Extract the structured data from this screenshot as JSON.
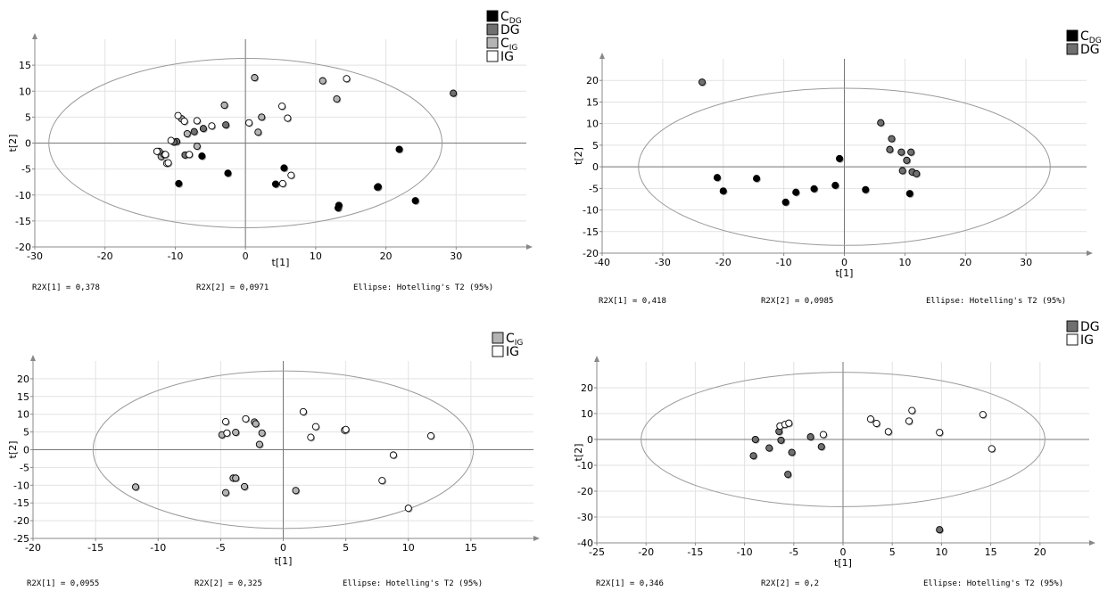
{
  "colors": {
    "C_DG": "#000000",
    "DG": "#707070",
    "C_IG": "#b4b4b4",
    "IG": "#ffffff",
    "grid": "#e2e2e2",
    "ellipse": "#9a9a9a"
  },
  "chart_data": [
    {
      "type": "scatter",
      "xlabel": "t[1]",
      "ylabel": "t[2]",
      "xlim": [
        -30,
        40
      ],
      "ylim": [
        -20,
        20
      ],
      "xticks": [
        "-30",
        "-20",
        "-10",
        "0",
        "10",
        "20",
        "30"
      ],
      "yticks": [
        "-20",
        "-15",
        "-10",
        "-5",
        "0",
        "5",
        "10",
        "15"
      ],
      "ellipse": {
        "label": "Ellipse: Hotelling's T2 (95%)",
        "rx": 28,
        "ry": 16.3
      },
      "legend": [
        {
          "group": "C_DG",
          "base": "C",
          "sub": "DG"
        },
        {
          "group": "DG",
          "base": "DG",
          "sub": ""
        },
        {
          "group": "C_IG",
          "base": "C",
          "sub": "IG"
        },
        {
          "group": "IG",
          "base": "IG",
          "sub": ""
        }
      ],
      "footer": {
        "r2x1": "R2X[1] = 0,378",
        "r2x2": "R2X[2] = 0,0971"
      },
      "series": [
        {
          "group": "C_DG",
          "points": [
            [
              -9.5,
              -7.8
            ],
            [
              -6.2,
              -2.5
            ],
            [
              -2.5,
              -5.8
            ],
            [
              4.3,
              -7.9
            ],
            [
              5.5,
              -4.8
            ],
            [
              13.2,
              -12.5
            ],
            [
              13.3,
              -12
            ],
            [
              18.8,
              -8.5
            ],
            [
              18.9,
              -8.4
            ],
            [
              21.9,
              -1.2
            ],
            [
              24.2,
              -11.1
            ]
          ]
        },
        {
          "group": "DG",
          "points": [
            [
              -7.3,
              2.2
            ],
            [
              -6,
              2.8
            ],
            [
              -8.6,
              -2.3
            ],
            [
              -9.8,
              0.3
            ],
            [
              -2.8,
              3.5
            ],
            [
              -10.2,
              0.2
            ],
            [
              29.6,
              9.6
            ]
          ]
        },
        {
          "group": "C_IG",
          "points": [
            [
              -9.1,
              4.7
            ],
            [
              -12,
              -2.6
            ],
            [
              -11.6,
              -2.2
            ],
            [
              -6.9,
              -0.6
            ],
            [
              -3,
              7.3
            ],
            [
              1.3,
              12.6
            ],
            [
              2.3,
              5
            ],
            [
              1.8,
              2.1
            ],
            [
              11,
              12
            ],
            [
              13,
              8.5
            ],
            [
              -8.3,
              1.8
            ],
            [
              -12.3,
              -1.6
            ]
          ]
        },
        {
          "group": "IG",
          "points": [
            [
              -9.6,
              5.3
            ],
            [
              -8.7,
              4.2
            ],
            [
              -6.9,
              4.3
            ],
            [
              -4.8,
              3.3
            ],
            [
              -10.6,
              0.5
            ],
            [
              -11.2,
              -3.9
            ],
            [
              -11,
              -3.8
            ],
            [
              -12.6,
              -1.6
            ],
            [
              -11.4,
              -2.2
            ],
            [
              0.5,
              3.9
            ],
            [
              5.2,
              7.1
            ],
            [
              6,
              4.8
            ],
            [
              5.3,
              -7.8
            ],
            [
              6.5,
              -6.2
            ],
            [
              14.4,
              12.4
            ],
            [
              -8,
              -2.2
            ]
          ]
        }
      ]
    },
    {
      "type": "scatter",
      "xlabel": "t[1]",
      "ylabel": "t[2]",
      "xlim": [
        -40,
        40
      ],
      "ylim": [
        -20,
        25
      ],
      "xticks": [
        "-40",
        "-30",
        "-20",
        "-10",
        "0",
        "10",
        "20",
        "30"
      ],
      "yticks": [
        "-20",
        "-15",
        "-10",
        "-5",
        "0",
        "5",
        "10",
        "15",
        "20"
      ],
      "ellipse": {
        "label": "Ellipse: Hotelling's T2 (95%)",
        "rx": 34,
        "ry": 18.2
      },
      "legend": [
        {
          "group": "C_DG",
          "base": "C",
          "sub": "DG"
        },
        {
          "group": "DG",
          "base": "DG",
          "sub": ""
        }
      ],
      "footer": {
        "r2x1": "R2X[1] = 0,418",
        "r2x2": "R2X[2] = 0,0985"
      },
      "series": [
        {
          "group": "C_DG",
          "points": [
            [
              -21,
              -2.5
            ],
            [
              -20,
              -5.6
            ],
            [
              -14.5,
              -2.7
            ],
            [
              -9.7,
              -8.2
            ],
            [
              -8,
              -5.9
            ],
            [
              -5,
              -5.1
            ],
            [
              -1.5,
              -4.3
            ],
            [
              -0.8,
              1.9
            ],
            [
              3.5,
              -5.3
            ],
            [
              10.8,
              -6.2
            ]
          ]
        },
        {
          "group": "DG",
          "points": [
            [
              -23.5,
              19.6
            ],
            [
              6,
              10.2
            ],
            [
              7.8,
              6.5
            ],
            [
              7.5,
              4
            ],
            [
              9.4,
              3.4
            ],
            [
              11,
              3.4
            ],
            [
              10.3,
              1.5
            ],
            [
              9.6,
              -0.9
            ],
            [
              11.2,
              -1.2
            ],
            [
              11.9,
              -1.6
            ]
          ]
        }
      ]
    },
    {
      "type": "scatter",
      "xlabel": "t[1]",
      "ylabel": "t[2]",
      "xlim": [
        -20,
        20
      ],
      "ylim": [
        -25,
        25
      ],
      "xticks": [
        "-20",
        "-15",
        "-10",
        "-5",
        "0",
        "5",
        "10",
        "15"
      ],
      "yticks": [
        "-25",
        "-20",
        "-15",
        "-10",
        "-5",
        "0",
        "5",
        "10",
        "15",
        "20"
      ],
      "ellipse": {
        "label": "Ellipse: Hotelling's T2 (95%)",
        "rx": 15.2,
        "ry": 22.2
      },
      "legend": [
        {
          "group": "C_IG",
          "base": "C",
          "sub": "IG"
        },
        {
          "group": "IG",
          "base": "IG",
          "sub": ""
        }
      ],
      "footer": {
        "r2x1": "R2X[1] = 0,0955",
        "r2x2": "R2X[2] = 0,325"
      },
      "series": [
        {
          "group": "C_IG",
          "points": [
            [
              -11.8,
              -10.5
            ],
            [
              -4.9,
              4.2
            ],
            [
              -3.8,
              4.9
            ],
            [
              -2.3,
              7.8
            ],
            [
              -2.2,
              7.3
            ],
            [
              -1.7,
              4.7
            ],
            [
              -1.9,
              1.5
            ],
            [
              -4.6,
              -12.1
            ],
            [
              -3.1,
              -10.4
            ],
            [
              -4,
              -8
            ],
            [
              -3.8,
              -8
            ],
            [
              1,
              -11.5
            ]
          ]
        },
        {
          "group": "IG",
          "points": [
            [
              -4.6,
              7.9
            ],
            [
              -4.5,
              4.7
            ],
            [
              -3,
              8.7
            ],
            [
              1.6,
              10.7
            ],
            [
              2.2,
              3.5
            ],
            [
              2.6,
              6.5
            ],
            [
              4.9,
              5.5
            ],
            [
              5,
              5.7
            ],
            [
              11.8,
              3.9
            ],
            [
              8.8,
              -1.5
            ],
            [
              7.9,
              -8.7
            ],
            [
              10,
              -16.5
            ]
          ]
        }
      ]
    },
    {
      "type": "scatter",
      "xlabel": "t[1]",
      "ylabel": "t[2]",
      "xlim": [
        -25,
        25
      ],
      "ylim": [
        -40,
        30
      ],
      "xticks": [
        "-25",
        "-20",
        "-15",
        "-10",
        "-5",
        "0",
        "5",
        "10",
        "15",
        "20"
      ],
      "yticks": [
        "-40",
        "-30",
        "-20",
        "-10",
        "0",
        "10",
        "20"
      ],
      "ellipse": {
        "label": "Ellipse: Hotelling's T2 (95%)",
        "rx": 20.5,
        "ry": 26
      },
      "legend": [
        {
          "group": "DG",
          "base": "DG",
          "sub": ""
        },
        {
          "group": "IG",
          "base": "IG",
          "sub": ""
        }
      ],
      "footer": {
        "r2x1": "R2X[1] = 0,346",
        "r2x2": "R2X[2] = 0,2"
      },
      "series": [
        {
          "group": "DG",
          "points": [
            [
              -9.1,
              -6.3
            ],
            [
              -8.9,
              0
            ],
            [
              -7.5,
              -3.3
            ],
            [
              -6.5,
              3.1
            ],
            [
              -6.3,
              -0.3
            ],
            [
              -5.6,
              -13.5
            ],
            [
              -5.2,
              -5
            ],
            [
              -3.3,
              1
            ],
            [
              -2.2,
              -2.8
            ],
            [
              9.8,
              -34.9
            ]
          ]
        },
        {
          "group": "IG",
          "points": [
            [
              -6.4,
              5.2
            ],
            [
              -5.9,
              5.8
            ],
            [
              -5.5,
              6.3
            ],
            [
              -2,
              1.9
            ],
            [
              2.8,
              7.9
            ],
            [
              3.4,
              6.2
            ],
            [
              4.6,
              3
            ],
            [
              6.7,
              7.1
            ],
            [
              7,
              11.2
            ],
            [
              9.8,
              2.7
            ],
            [
              14.2,
              9.6
            ],
            [
              15.1,
              -3.6
            ]
          ]
        }
      ]
    }
  ]
}
